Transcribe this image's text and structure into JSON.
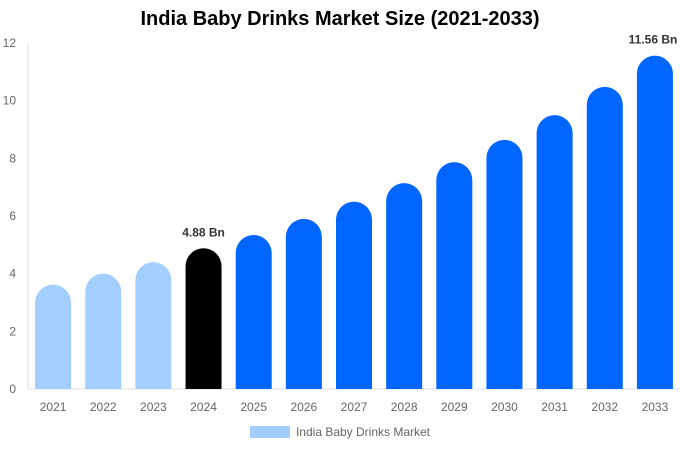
{
  "chart_data": {
    "type": "bar",
    "title": "India Baby Drinks Market Size (2021-2033)",
    "xlabel": "",
    "ylabel": "",
    "categories": [
      "2021",
      "2022",
      "2023",
      "2024",
      "2025",
      "2026",
      "2027",
      "2028",
      "2029",
      "2030",
      "2031",
      "2032",
      "2033"
    ],
    "series": [
      {
        "name": "India Baby Drinks Market",
        "values": [
          3.62,
          4.0,
          4.4,
          4.88,
          5.34,
          5.9,
          6.5,
          7.14,
          7.87,
          8.64,
          9.5,
          10.48,
          11.56
        ]
      }
    ],
    "data_labels": {
      "2024": "4.88 Bn",
      "2033": "11.56 Bn"
    },
    "ylim": [
      0,
      12
    ],
    "yticks": [
      0,
      2,
      4,
      6,
      8,
      10,
      12
    ],
    "grid": false,
    "legend_position": "bottom",
    "colors": {
      "historical": "#a3cfff",
      "current": "#000000",
      "forecast": "#0066ff"
    }
  }
}
